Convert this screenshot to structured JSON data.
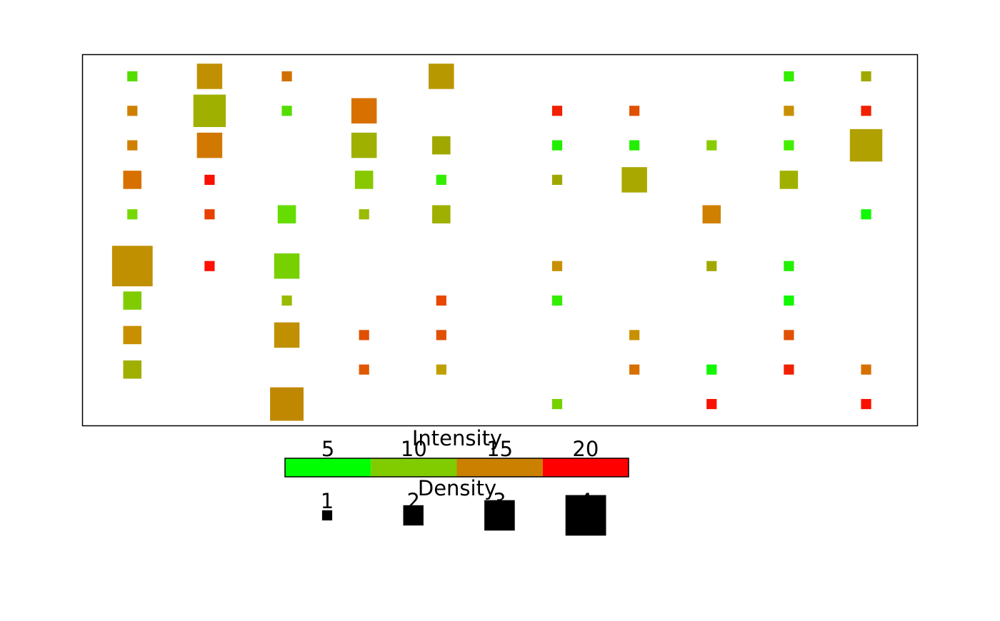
{
  "chart_data": {
    "type": "scatter",
    "x": [
      1,
      2,
      3,
      5,
      9.5,
      10.5,
      1,
      2,
      3,
      4,
      6.5,
      7.5,
      9.5,
      10.5,
      1,
      2,
      4,
      5,
      6.5,
      7.5,
      8.5,
      9.5,
      10.5,
      1,
      2,
      4,
      5,
      6.5,
      7.5,
      9.5,
      1,
      2,
      3,
      4,
      5,
      8.5,
      10.5,
      1,
      2,
      3,
      6.5,
      8.5,
      9.5,
      1,
      3,
      5,
      6.5,
      9.5,
      1,
      3,
      4,
      5,
      7.5,
      9.5,
      1,
      4,
      5,
      7.5,
      8.5,
      9.5,
      10.5,
      3,
      6.5,
      8.5,
      10.5
    ],
    "y": [
      1,
      1,
      1,
      1,
      1,
      1,
      2,
      2,
      2,
      2,
      2,
      2,
      2,
      2,
      3,
      3,
      3,
      3,
      3,
      3,
      3,
      3,
      3,
      4,
      4,
      4,
      4,
      4,
      4,
      4,
      5,
      5,
      5,
      5,
      5,
      5,
      5,
      6.5,
      6.5,
      6.5,
      6.5,
      6.5,
      6.5,
      7.5,
      7.5,
      7.5,
      7.5,
      7.5,
      8.5,
      8.5,
      8.5,
      8.5,
      8.5,
      8.5,
      9.5,
      9.5,
      9.5,
      9.5,
      9.5,
      9.5,
      9.5,
      10.5,
      10.5,
      10.5,
      10.5
    ],
    "sizes": [
      1,
      2.5,
      1,
      2.5,
      1,
      1,
      1,
      3.2,
      1,
      2.5,
      1,
      1,
      1,
      1,
      1,
      2.5,
      2.5,
      1.8,
      1,
      1,
      1,
      1,
      3.2,
      1.8,
      1,
      1.8,
      1,
      1,
      2.5,
      1.8,
      1,
      1,
      1.8,
      1,
      1.8,
      1.8,
      1,
      4,
      1,
      2.5,
      1,
      1,
      1,
      1.8,
      1,
      1,
      1,
      1,
      1.8,
      2.5,
      1,
      1,
      1,
      1,
      1.8,
      1,
      1,
      1,
      1,
      1,
      1,
      3.3,
      1,
      1,
      1
    ],
    "colors": [
      "#55dd00",
      "#c09000",
      "#d07000",
      "#b89800",
      "#33ee00",
      "#a0a800",
      "#d08000",
      "#a0b000",
      "#55dd00",
      "#d87000",
      "#f02000",
      "#e05000",
      "#c89000",
      "#f02000",
      "#d08000",
      "#d07800",
      "#a0b000",
      "#a0a800",
      "#22ee00",
      "#22ee00",
      "#88cc00",
      "#44ee00",
      "#b0a000",
      "#d87000",
      "#f81000",
      "#88c800",
      "#33ee00",
      "#a0a800",
      "#a8a800",
      "#a0b000",
      "#77d800",
      "#e84000",
      "#66dd00",
      "#99bb00",
      "#a0b000",
      "#d08000",
      "#11f800",
      "#c09000",
      "#ff1000",
      "#77d000",
      "#c89000",
      "#a0a800",
      "#22f000",
      "#80cc00",
      "#99bb00",
      "#e84800",
      "#33ee00",
      "#11f800",
      "#c89000",
      "#c09000",
      "#e05000",
      "#e05000",
      "#c89000",
      "#e05000",
      "#a0b000",
      "#e05800",
      "#c0a000",
      "#d87000",
      "#11f800",
      "#f02000",
      "#d87000",
      "#c08800",
      "#77d000",
      "#f81000",
      "#f81000"
    ],
    "xlim": [
      0.35,
      11.17
    ],
    "ylim": [
      11.14,
      0.36
    ],
    "color_legend": {
      "title": "Intensity",
      "ticks": [
        5,
        10,
        15,
        20
      ],
      "breaks": [
        2.5,
        7.5,
        12.5,
        17.5,
        22.5
      ],
      "colors": [
        "#00ff00",
        "#80cc00",
        "#cc8000",
        "#ff0000"
      ]
    },
    "size_legend": {
      "title": "Density",
      "values": [
        1,
        2,
        3,
        4
      ]
    }
  }
}
